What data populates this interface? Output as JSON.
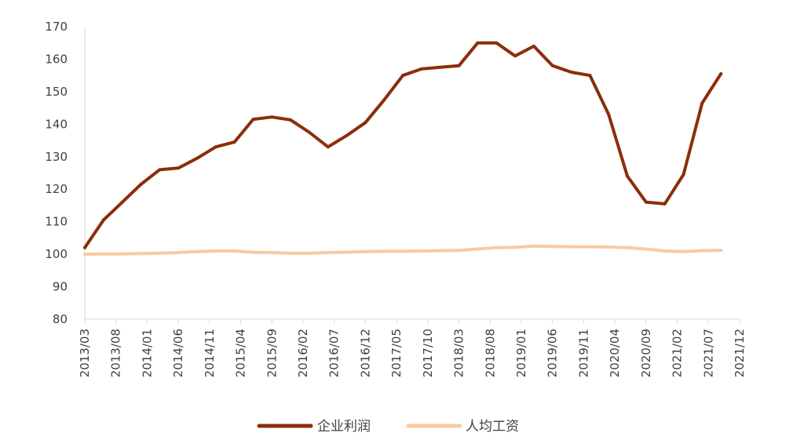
{
  "chart_data": {
    "type": "line",
    "title": "",
    "xlabel": "",
    "ylabel": "",
    "ylim": [
      80,
      170
    ],
    "yticks": [
      80,
      90,
      100,
      110,
      120,
      130,
      140,
      150,
      160,
      170
    ],
    "grid": false,
    "legend_position": "bottom-center",
    "x_tick_labels": [
      "2013/03",
      "2013/08",
      "2014/01",
      "2014/06",
      "2014/11",
      "2015/04",
      "2015/09",
      "2016/02",
      "2016/07",
      "2016/12",
      "2017/05",
      "2017/10",
      "2018/03",
      "2018/08",
      "2019/01",
      "2019/06",
      "2019/11",
      "2020/04",
      "2020/09",
      "2021/02",
      "2021/07",
      "2021/12"
    ],
    "x": [
      "2013/03",
      "2013/06",
      "2013/09",
      "2013/12",
      "2014/03",
      "2014/06",
      "2014/09",
      "2014/12",
      "2015/03",
      "2015/06",
      "2015/09",
      "2015/12",
      "2016/03",
      "2016/06",
      "2016/09",
      "2016/12",
      "2017/03",
      "2017/06",
      "2017/09",
      "2017/12",
      "2018/03",
      "2018/06",
      "2018/09",
      "2018/12",
      "2019/03",
      "2019/06",
      "2019/09",
      "2019/12",
      "2020/03",
      "2020/06",
      "2020/09",
      "2020/12",
      "2021/03",
      "2021/06",
      "2021/09"
    ],
    "series": [
      {
        "name": "企业利润",
        "color": "#8B2E0B",
        "values": [
          102,
          110.5,
          116,
          121.5,
          126,
          126.5,
          129.5,
          133,
          134.5,
          141.5,
          142.2,
          141.3,
          137.5,
          133,
          136.5,
          140.5,
          147.5,
          155,
          157,
          157.5,
          158,
          165,
          165,
          161,
          164,
          158,
          156,
          155,
          143,
          124,
          116,
          115.5,
          124.5,
          146.5,
          155.5
        ]
      },
      {
        "name": "人均工资",
        "color": "#F8CBA0",
        "values": [
          100,
          100.1,
          100.1,
          100.2,
          100.3,
          100.5,
          100.8,
          101,
          101,
          100.6,
          100.5,
          100.3,
          100.3,
          100.5,
          100.6,
          100.8,
          100.9,
          100.9,
          101,
          101.1,
          101.2,
          101.6,
          102,
          102.1,
          102.5,
          102.4,
          102.3,
          102.3,
          102.2,
          102,
          101.6,
          101,
          100.8,
          101.1,
          101.2
        ]
      }
    ]
  }
}
